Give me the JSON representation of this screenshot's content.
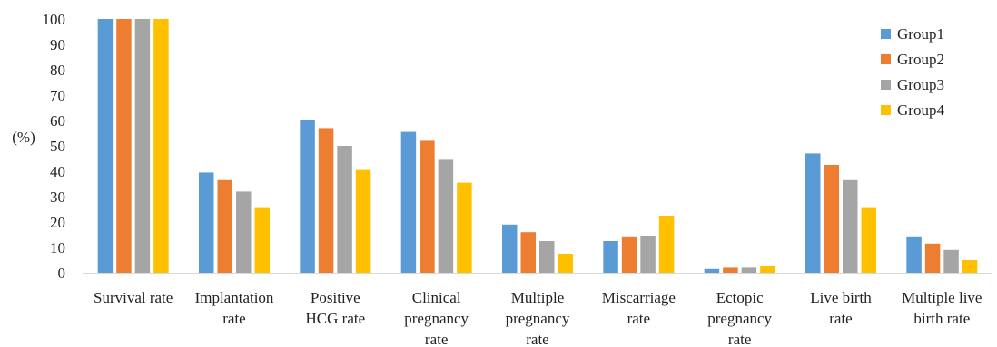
{
  "chart_data": {
    "type": "bar",
    "ylabel": "(%)",
    "ylim": [
      0,
      100
    ],
    "yticks": [
      "0",
      "10",
      "20",
      "30",
      "40",
      "50",
      "60",
      "70",
      "80",
      "90",
      "100"
    ],
    "grid": false,
    "legend_position": "top-right",
    "categories": [
      [
        "Survival rate"
      ],
      [
        "Implantation",
        "rate"
      ],
      [
        "Positive",
        "HCG rate"
      ],
      [
        "Clinical",
        "pregnancy",
        "rate"
      ],
      [
        "Multiple",
        "pregnancy",
        "rate"
      ],
      [
        "Miscarriage",
        "rate"
      ],
      [
        "Ectopic",
        "pregnancy",
        "rate"
      ],
      [
        "Live birth",
        "rate"
      ],
      [
        "Multiple live",
        "birth rate"
      ]
    ],
    "series": [
      {
        "name": "Group1",
        "color": "#5B9BD5",
        "values": [
          100,
          39.5,
          60,
          55.5,
          19,
          12.5,
          1.5,
          47,
          14
        ]
      },
      {
        "name": "Group2",
        "color": "#ED7D31",
        "values": [
          100,
          36.5,
          57,
          52,
          16,
          14,
          2,
          42.5,
          11.5
        ]
      },
      {
        "name": "Group3",
        "color": "#A5A5A5",
        "values": [
          100,
          32,
          50,
          44.5,
          12.5,
          14.5,
          2,
          36.5,
          9
        ]
      },
      {
        "name": "Group4",
        "color": "#FFC000",
        "values": [
          100,
          25.5,
          40.5,
          35.5,
          7.5,
          22.5,
          2.5,
          25.5,
          5
        ]
      }
    ]
  }
}
